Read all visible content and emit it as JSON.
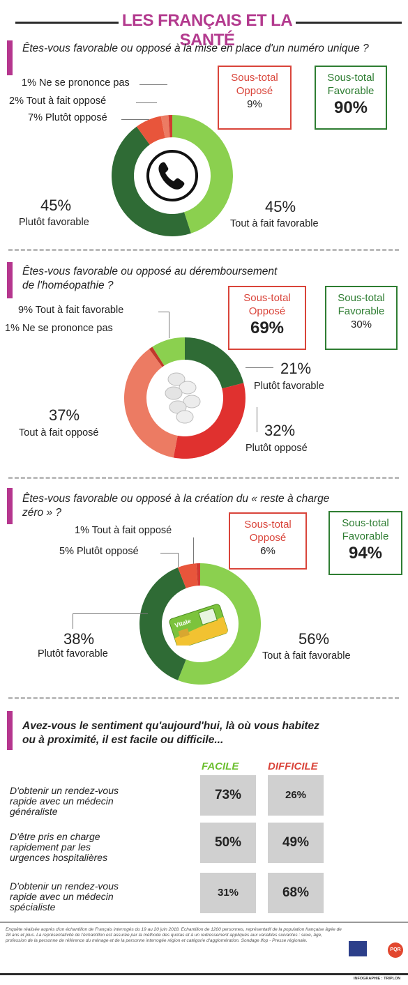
{
  "title": "LES FRANÇAIS ET LA SANTÉ",
  "colors": {
    "accent": "#b5368e",
    "tout_a_fait_favorable": "#8bd04f",
    "plutot_favorable": "#2f6b35",
    "plutot_oppose": "#e8553b",
    "tout_a_fait_oppose": "#ec7b63",
    "ne_se_prononce_pas": "#d13b31",
    "oppose_box": "#d9443a",
    "favorable_box": "#2e7d32",
    "cell_bg": "#d0d0d0"
  },
  "q1": {
    "question": "Êtes-vous favorable ou opposé à la mise en place d'un numéro unique ?",
    "oppose_box": {
      "label1": "Sous-total",
      "label2": "Opposé",
      "value": "9%"
    },
    "favorable_box": {
      "label1": "Sous-total",
      "label2": "Favorable",
      "value": "90%"
    },
    "labels": {
      "nsp": "1% Ne se prononce pas",
      "tout_oppose": "2% Tout à fait opposé",
      "plutot_oppose": "7% Plutôt opposé",
      "plutot_fav_pct": "45%",
      "plutot_fav_txt": "Plutôt favorable",
      "tout_fav_pct": "45%",
      "tout_fav_txt": "Tout à fait favorable"
    },
    "icon": "telephone-icon"
  },
  "q2": {
    "question_line1": "Êtes-vous favorable ou opposé au déremboursement",
    "question_line2": "de l'homéopathie ?",
    "oppose_box": {
      "label1": "Sous-total",
      "label2": "Opposé",
      "value": "69%"
    },
    "favorable_box": {
      "label1": "Sous-total",
      "label2": "Favorable",
      "value": "30%"
    },
    "labels": {
      "tout_fav": "9% Tout à fait favorable",
      "nsp": "1%  Ne se prononce pas",
      "plutot_fav_pct": "21%",
      "plutot_fav_txt": "Plutôt favorable",
      "plutot_opp_pct": "32%",
      "plutot_opp_txt": "Plutôt opposé",
      "tout_opp_pct": "37%",
      "tout_opp_txt": "Tout à fait opposé"
    },
    "icon": "pills-icon"
  },
  "q3": {
    "question_line1": "Êtes-vous favorable ou opposé à la création du « reste à charge",
    "question_line2": "zéro » ?",
    "oppose_box": {
      "label1": "Sous-total",
      "label2": "Opposé",
      "value": "6%"
    },
    "favorable_box": {
      "label1": "Sous-total",
      "label2": "Favorable",
      "value": "94%"
    },
    "labels": {
      "tout_opp": "1% Tout à fait opposé",
      "plutot_opp": "5% Plutôt opposé",
      "plutot_fav_pct": "38%",
      "plutot_fav_txt": "Plutôt favorable",
      "tout_fav_pct": "56%",
      "tout_fav_txt": "Tout à fait favorable"
    },
    "icon": "health-card-icon",
    "card_text": "Vitale"
  },
  "q4": {
    "question_line1": "Avez-vous le sentiment qu'aujourd'hui, là où vous habitez",
    "question_line2": "ou à proximité, il est facile ou difficile...",
    "col_facile": "FACILE",
    "col_difficile": "DIFFICILE",
    "rows": [
      {
        "l1": "D'obtenir un rendez-vous",
        "l2": "rapide avec un médecin",
        "l3": "généraliste",
        "facile": "73%",
        "difficile": "26%"
      },
      {
        "l1": "D'être pris en charge",
        "l2": "rapidement par les",
        "l3": "urgences hospitalières",
        "facile": "50%",
        "difficile": "49%"
      },
      {
        "l1": "D'obtenir un rendez-vous",
        "l2": "rapide avec un médecin",
        "l3": "spécialiste",
        "facile": "31%",
        "difficile": "68%"
      }
    ]
  },
  "footnote": "Enquête réalisée auprès d'un échantillon de Français interrogés du 19 au 20 juin 2018. Echantillon de 1200 personnes, représentatif de la population française âgée de 18 ans et plus. La représentativité de l'échantillon est assurée par la méthode des quotas et à un redressement appliqués aux variables suivantes : sexe, âge, profession de la personne de référence du ménage et de la personne interrogée région et catégorie d'agglomération. Sondage Ifop - Presse régionale.",
  "logo_right": "PQR",
  "credit": "INFOGRAPHIE : TRIPLON",
  "chart_data": [
    {
      "type": "pie",
      "title": "Êtes-vous favorable ou opposé à la mise en place d'un numéro unique ?",
      "categories": [
        "Tout à fait favorable",
        "Plutôt favorable",
        "Plutôt opposé",
        "Tout à fait opposé",
        "Ne se prononce pas"
      ],
      "values": [
        45,
        45,
        7,
        2,
        1
      ],
      "subtotals": {
        "Opposé": 9,
        "Favorable": 90
      }
    },
    {
      "type": "pie",
      "title": "Êtes-vous favorable ou opposé au déremboursement de l'homéopathie ?",
      "categories": [
        "Tout à fait favorable",
        "Plutôt favorable",
        "Plutôt opposé",
        "Tout à fait opposé",
        "Ne se prononce pas"
      ],
      "values": [
        9,
        21,
        32,
        37,
        1
      ],
      "subtotals": {
        "Opposé": 69,
        "Favorable": 30
      }
    },
    {
      "type": "pie",
      "title": "Êtes-vous favorable ou opposé à la création du « reste à charge zéro » ?",
      "categories": [
        "Tout à fait favorable",
        "Plutôt favorable",
        "Plutôt opposé",
        "Tout à fait opposé"
      ],
      "values": [
        56,
        38,
        5,
        1
      ],
      "subtotals": {
        "Opposé": 6,
        "Favorable": 94
      }
    },
    {
      "type": "table",
      "title": "Avez-vous le sentiment qu'aujourd'hui, là où vous habitez ou à proximité, il est facile ou difficile...",
      "columns": [
        "FACILE",
        "DIFFICILE"
      ],
      "rows": [
        {
          "label": "D'obtenir un rendez-vous rapide avec un médecin généraliste",
          "values": [
            73,
            26
          ]
        },
        {
          "label": "D'être pris en charge rapidement par les urgences hospitalières",
          "values": [
            50,
            49
          ]
        },
        {
          "label": "D'obtenir un rendez-vous rapide avec un médecin spécialiste",
          "values": [
            31,
            68
          ]
        }
      ]
    }
  ]
}
